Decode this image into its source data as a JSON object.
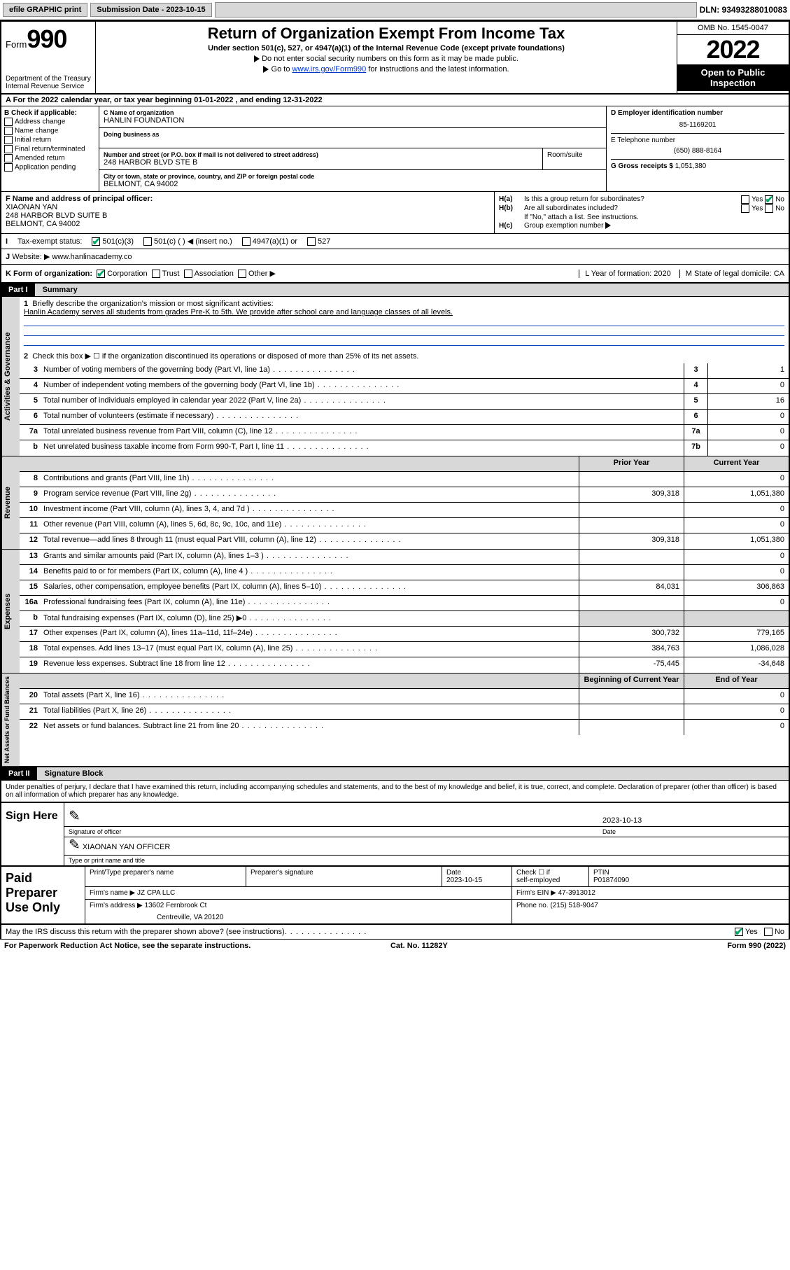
{
  "topbar": {
    "efile": "efile GRAPHIC print",
    "subdate_label": "Submission Date - 2023-10-15",
    "dln": "DLN: 93493288010083"
  },
  "header": {
    "form_label": "Form",
    "form_num": "990",
    "dept": "Department of the Treasury",
    "irs": "Internal Revenue Service",
    "title": "Return of Organization Exempt From Income Tax",
    "sub": "Under section 501(c), 527, or 4947(a)(1) of the Internal Revenue Code (except private foundations)",
    "notice1": "Do not enter social security numbers on this form as it may be made public.",
    "notice2_a": "Go to ",
    "notice2_link": "www.irs.gov/Form990",
    "notice2_b": " for instructions and the latest information.",
    "omb": "OMB No. 1545-0047",
    "year": "2022",
    "open": "Open to Public Inspection"
  },
  "taxyear": "For the 2022 calendar year, or tax year beginning 01-01-2022   , and ending 12-31-2022",
  "boxB": {
    "label": "B Check if applicable:",
    "items": [
      "Address change",
      "Name change",
      "Initial return",
      "Final return/terminated",
      "Amended return",
      "Application pending"
    ]
  },
  "boxC": {
    "name_label": "C Name of organization",
    "name": "HANLIN FOUNDATION",
    "dba_label": "Doing business as",
    "addr_label": "Number and street (or P.O. box if mail is not delivered to street address)",
    "addr": "248 HARBOR BLVD STE B",
    "room_label": "Room/suite",
    "city_label": "City or town, state or province, country, and ZIP or foreign postal code",
    "city": "BELMONT, CA  94002"
  },
  "boxD": {
    "ein_label": "D Employer identification number",
    "ein": "85-1169201",
    "phone_label": "E Telephone number",
    "phone": "(650) 888-8164",
    "gross_label": "G Gross receipts $",
    "gross": "1,051,380"
  },
  "boxF": {
    "label": "F Name and address of principal officer:",
    "name": "XIAONAN YAN",
    "addr1": "248 HARBOR BLVD SUITE B",
    "addr2": "BELMONT, CA  94002"
  },
  "boxH": {
    "a_label": "Is this a group return for subordinates?",
    "a_val": "No",
    "b_label": "Are all subordinates included?",
    "b_note": "If \"No,\" attach a list. See instructions.",
    "c_label": "Group exemption number",
    "yes": "Yes",
    "no": "No"
  },
  "boxI": {
    "label": "Tax-exempt status:",
    "opts": [
      "501(c)(3)",
      "501(c) (   ) ◀ (insert no.)",
      "4947(a)(1) or",
      "527"
    ]
  },
  "boxJ": {
    "label": "Website: ▶",
    "val": "www.hanlinacademy.co"
  },
  "boxK": {
    "label": "K Form of organization:",
    "opts": [
      "Corporation",
      "Trust",
      "Association",
      "Other ▶"
    ],
    "l_label": "L Year of formation: 2020",
    "m_label": "M State of legal domicile: CA"
  },
  "part1": {
    "hdr": "Part I",
    "title": "Summary",
    "l1a": "Briefly describe the organization's mission or most significant activities:",
    "l1b": "Hanlin Academy serves all students from grades Pre-K to 5th. We provide after school care and language classes of all levels.",
    "l2": "Check this box ▶ ☐  if the organization discontinued its operations or disposed of more than 25% of its net assets.",
    "lines_gov": [
      {
        "n": "3",
        "t": "Number of voting members of the governing body (Part VI, line 1a)",
        "box": "3",
        "v": "1"
      },
      {
        "n": "4",
        "t": "Number of independent voting members of the governing body (Part VI, line 1b)",
        "box": "4",
        "v": "0"
      },
      {
        "n": "5",
        "t": "Total number of individuals employed in calendar year 2022 (Part V, line 2a)",
        "box": "5",
        "v": "16"
      },
      {
        "n": "6",
        "t": "Total number of volunteers (estimate if necessary)",
        "box": "6",
        "v": "0"
      },
      {
        "n": "7a",
        "t": "Total unrelated business revenue from Part VIII, column (C), line 12",
        "box": "7a",
        "v": "0"
      },
      {
        "n": "b",
        "t": "Net unrelated business taxable income from Form 990-T, Part I, line 11",
        "box": "7b",
        "v": "0"
      }
    ],
    "col_prior": "Prior Year",
    "col_curr": "Current Year",
    "lines_rev": [
      {
        "n": "8",
        "t": "Contributions and grants (Part VIII, line 1h)",
        "p": "",
        "c": "0"
      },
      {
        "n": "9",
        "t": "Program service revenue (Part VIII, line 2g)",
        "p": "309,318",
        "c": "1,051,380"
      },
      {
        "n": "10",
        "t": "Investment income (Part VIII, column (A), lines 3, 4, and 7d )",
        "p": "",
        "c": "0"
      },
      {
        "n": "11",
        "t": "Other revenue (Part VIII, column (A), lines 5, 6d, 8c, 9c, 10c, and 11e)",
        "p": "",
        "c": "0"
      },
      {
        "n": "12",
        "t": "Total revenue—add lines 8 through 11 (must equal Part VIII, column (A), line 12)",
        "p": "309,318",
        "c": "1,051,380"
      }
    ],
    "lines_exp": [
      {
        "n": "13",
        "t": "Grants and similar amounts paid (Part IX, column (A), lines 1–3 )",
        "p": "",
        "c": "0"
      },
      {
        "n": "14",
        "t": "Benefits paid to or for members (Part IX, column (A), line 4 )",
        "p": "",
        "c": "0"
      },
      {
        "n": "15",
        "t": "Salaries, other compensation, employee benefits (Part IX, column (A), lines 5–10)",
        "p": "84,031",
        "c": "306,863"
      },
      {
        "n": "16a",
        "t": "Professional fundraising fees (Part IX, column (A), line 11e)",
        "p": "",
        "c": "0"
      },
      {
        "n": "b",
        "t": "Total fundraising expenses (Part IX, column (D), line 25) ▶0",
        "p": "grey",
        "c": "grey"
      },
      {
        "n": "17",
        "t": "Other expenses (Part IX, column (A), lines 11a–11d, 11f–24e)",
        "p": "300,732",
        "c": "779,165"
      },
      {
        "n": "18",
        "t": "Total expenses. Add lines 13–17 (must equal Part IX, column (A), line 25)",
        "p": "384,763",
        "c": "1,086,028"
      },
      {
        "n": "19",
        "t": "Revenue less expenses. Subtract line 18 from line 12",
        "p": "-75,445",
        "c": "-34,648"
      }
    ],
    "col_beg": "Beginning of Current Year",
    "col_end": "End of Year",
    "lines_net": [
      {
        "n": "20",
        "t": "Total assets (Part X, line 16)",
        "p": "",
        "c": "0"
      },
      {
        "n": "21",
        "t": "Total liabilities (Part X, line 26)",
        "p": "",
        "c": "0"
      },
      {
        "n": "22",
        "t": "Net assets or fund balances. Subtract line 21 from line 20",
        "p": "",
        "c": "0"
      }
    ]
  },
  "part2": {
    "hdr": "Part II",
    "title": "Signature Block",
    "pen": "Under penalties of perjury, I declare that I have examined this return, including accompanying schedules and statements, and to the best of my knowledge and belief, it is true, correct, and complete. Declaration of preparer (other than officer) is based on all information of which preparer has any knowledge."
  },
  "sign": {
    "here": "Sign Here",
    "sig_label": "Signature of officer",
    "date_label": "Date",
    "date": "2023-10-13",
    "name": "XIAONAN YAN OFFICER",
    "name_label": "Type or print name and title"
  },
  "prep": {
    "label": "Paid Preparer Use Only",
    "c1": "Print/Type preparer's name",
    "c2": "Preparer's signature",
    "c3": "Date",
    "c3v": "2023-10-15",
    "c4a": "Check ☐ if",
    "c4b": "self-employed",
    "c5": "PTIN",
    "c5v": "P01874090",
    "firm_label": "Firm's name    ▶",
    "firm": "JZ CPA LLC",
    "ein_label": "Firm's EIN ▶",
    "ein": "47-3913012",
    "addr_label": "Firm's address ▶",
    "addr": "13602 Fernbrook Ct",
    "addr2": "Centreville, VA  20120",
    "ph_label": "Phone no.",
    "ph": "(215) 518-9047"
  },
  "footer": {
    "q": "May the IRS discuss this return with the preparer shown above? (see instructions)",
    "yes": "Yes",
    "no": "No",
    "pra": "For Paperwork Reduction Act Notice, see the separate instructions.",
    "cat": "Cat. No. 11282Y",
    "form": "Form 990 (2022)"
  },
  "vlabels": {
    "gov": "Activities & Governance",
    "rev": "Revenue",
    "exp": "Expenses",
    "net": "Net Assets or Fund Balances"
  }
}
